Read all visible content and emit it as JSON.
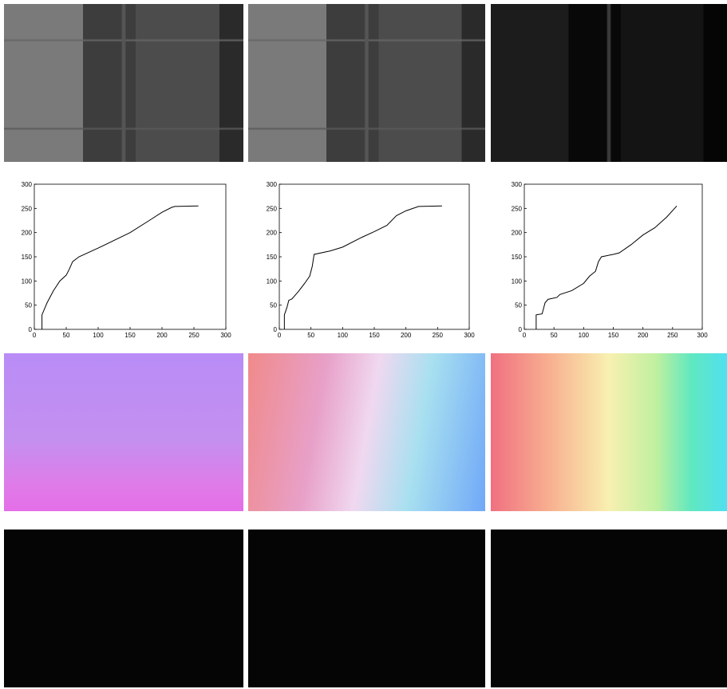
{
  "chart_data": [
    {
      "type": "line",
      "color": "#000000",
      "x": [
        12,
        12,
        20,
        30,
        40,
        50,
        55,
        60,
        70,
        100,
        150,
        180,
        200,
        215,
        220,
        257
      ],
      "values": [
        0,
        30,
        55,
        80,
        100,
        112,
        125,
        140,
        150,
        168,
        200,
        225,
        242,
        252,
        254,
        255
      ],
      "xlim": [
        0,
        300
      ],
      "ylim": [
        0,
        300
      ],
      "xticks": [
        0,
        50,
        100,
        150,
        200,
        250,
        300
      ],
      "yticks": [
        0,
        50,
        100,
        150,
        200,
        250,
        300
      ]
    },
    {
      "type": "line",
      "color": "#000000",
      "x": [
        8,
        8,
        12,
        15,
        20,
        30,
        40,
        48,
        52,
        55,
        80,
        100,
        130,
        150,
        170,
        185,
        200,
        220,
        257
      ],
      "values": [
        0,
        30,
        45,
        60,
        63,
        78,
        95,
        110,
        130,
        155,
        162,
        170,
        190,
        202,
        215,
        235,
        245,
        254,
        255
      ],
      "xlim": [
        0,
        300
      ],
      "ylim": [
        0,
        300
      ],
      "xticks": [
        0,
        50,
        100,
        150,
        200,
        250,
        300
      ],
      "yticks": [
        0,
        50,
        100,
        150,
        200,
        250,
        300
      ]
    },
    {
      "type": "line",
      "color": "#000000",
      "x": [
        20,
        20,
        30,
        35,
        40,
        55,
        60,
        80,
        100,
        110,
        120,
        125,
        130,
        150,
        160,
        180,
        200,
        220,
        240,
        257
      ],
      "values": [
        0,
        30,
        32,
        55,
        62,
        66,
        72,
        80,
        95,
        110,
        120,
        140,
        150,
        155,
        158,
        175,
        195,
        210,
        232,
        255
      ],
      "xlim": [
        0,
        300
      ],
      "ylim": [
        0,
        300
      ],
      "xticks": [
        0,
        50,
        100,
        150,
        200,
        250,
        300
      ],
      "yticks": [
        0,
        50,
        100,
        150,
        200,
        250,
        300
      ]
    }
  ]
}
